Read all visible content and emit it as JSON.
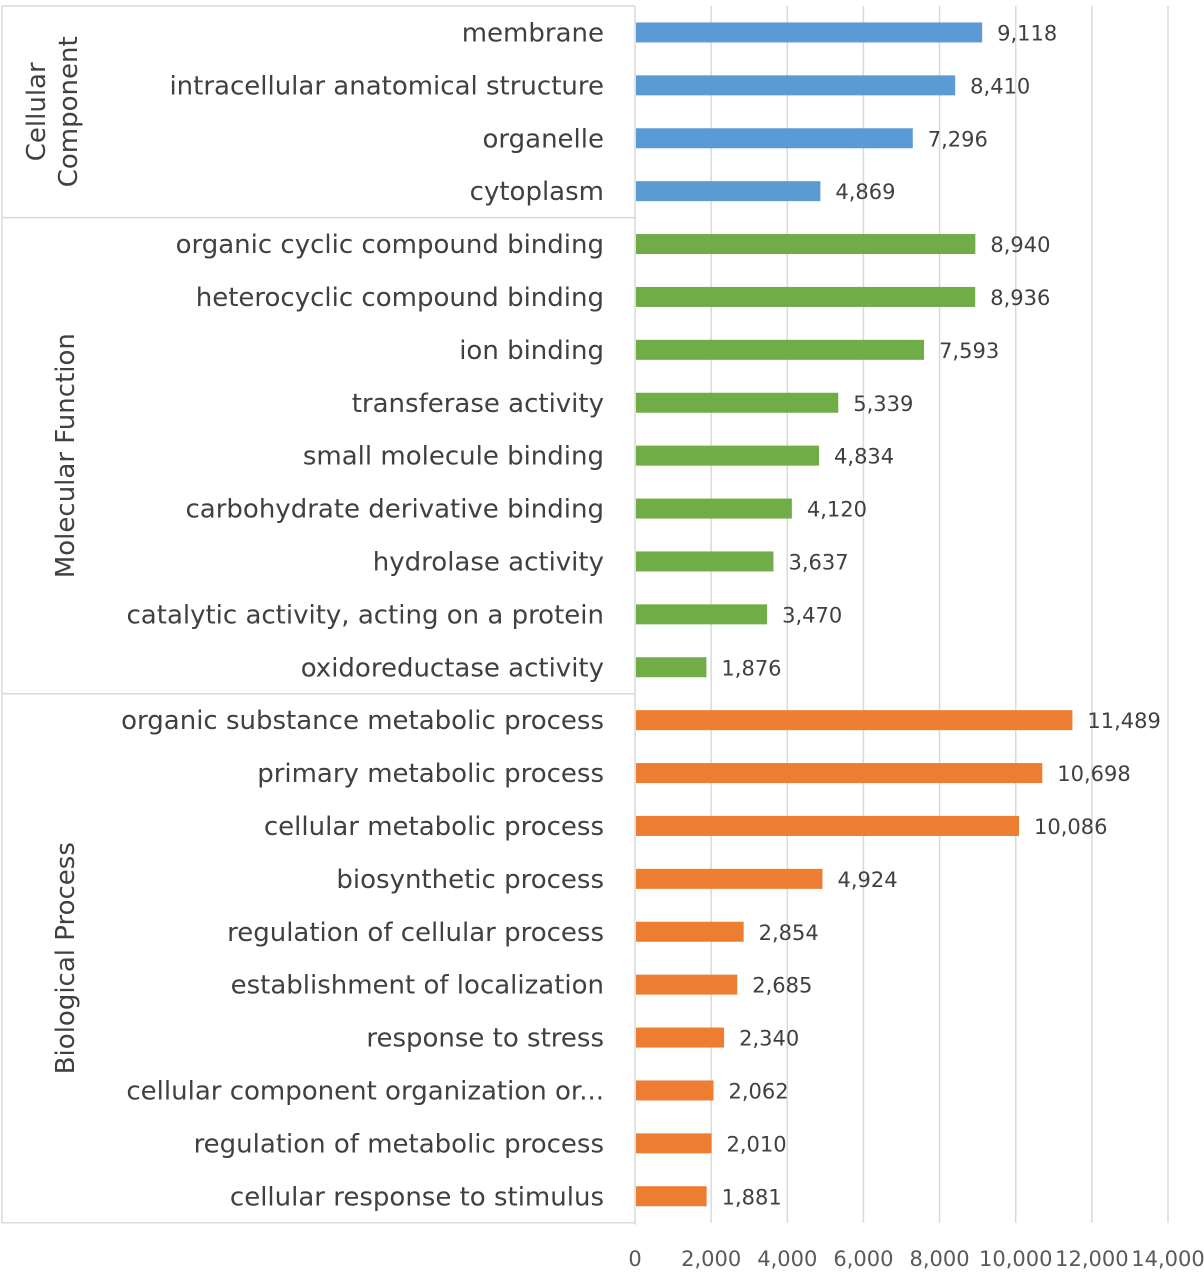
{
  "chart_data": {
    "type": "bar",
    "orientation": "horizontal",
    "xlim": [
      0,
      14000
    ],
    "xticks": [
      "0",
      "2,000",
      "4,000",
      "6,000",
      "8,000",
      "10,000",
      "12,000",
      "14,000"
    ],
    "grid": true,
    "legend": "none",
    "groups": [
      {
        "name": "Cellular Component",
        "name_lines": [
          "Cellular",
          "Component"
        ],
        "color": "#5B9BD5",
        "items": [
          {
            "label": "membrane",
            "value": 9118,
            "value_label": "9,118"
          },
          {
            "label": "intracellular anatomical structure",
            "value": 8410,
            "value_label": "8,410"
          },
          {
            "label": "organelle",
            "value": 7296,
            "value_label": "7,296"
          },
          {
            "label": "cytoplasm",
            "value": 4869,
            "value_label": "4,869"
          }
        ]
      },
      {
        "name": "Molecular Function",
        "name_lines": [
          "Molecular Function"
        ],
        "color": "#70AD47",
        "items": [
          {
            "label": "organic cyclic compound binding",
            "value": 8940,
            "value_label": "8,940"
          },
          {
            "label": "heterocyclic compound binding",
            "value": 8936,
            "value_label": "8,936"
          },
          {
            "label": "ion binding",
            "value": 7593,
            "value_label": "7,593"
          },
          {
            "label": "transferase activity",
            "value": 5339,
            "value_label": "5,339"
          },
          {
            "label": "small molecule binding",
            "value": 4834,
            "value_label": "4,834"
          },
          {
            "label": "carbohydrate derivative binding",
            "value": 4120,
            "value_label": "4,120"
          },
          {
            "label": "hydrolase activity",
            "value": 3637,
            "value_label": "3,637"
          },
          {
            "label": "catalytic activity, acting on a protein",
            "value": 3470,
            "value_label": "3,470"
          },
          {
            "label": "oxidoreductase activity",
            "value": 1876,
            "value_label": "1,876"
          }
        ]
      },
      {
        "name": "Biological Process",
        "name_lines": [
          "Biological Process"
        ],
        "color": "#ED7D31",
        "items": [
          {
            "label": "organic substance metabolic process",
            "value": 11489,
            "value_label": "11,489"
          },
          {
            "label": "primary metabolic process",
            "value": 10698,
            "value_label": "10,698"
          },
          {
            "label": "cellular metabolic process",
            "value": 10086,
            "value_label": "10,086"
          },
          {
            "label": "biosynthetic process",
            "value": 4924,
            "value_label": "4,924"
          },
          {
            "label": "regulation of cellular process",
            "value": 2854,
            "value_label": "2,854"
          },
          {
            "label": "establishment of localization",
            "value": 2685,
            "value_label": "2,685"
          },
          {
            "label": "response to stress",
            "value": 2340,
            "value_label": "2,340"
          },
          {
            "label": "cellular component organization or...",
            "value": 2062,
            "value_label": "2,062"
          },
          {
            "label": "regulation of metabolic process",
            "value": 2010,
            "value_label": "2,010"
          },
          {
            "label": "cellular response to stimulus",
            "value": 1881,
            "value_label": "1,881"
          }
        ]
      }
    ]
  }
}
